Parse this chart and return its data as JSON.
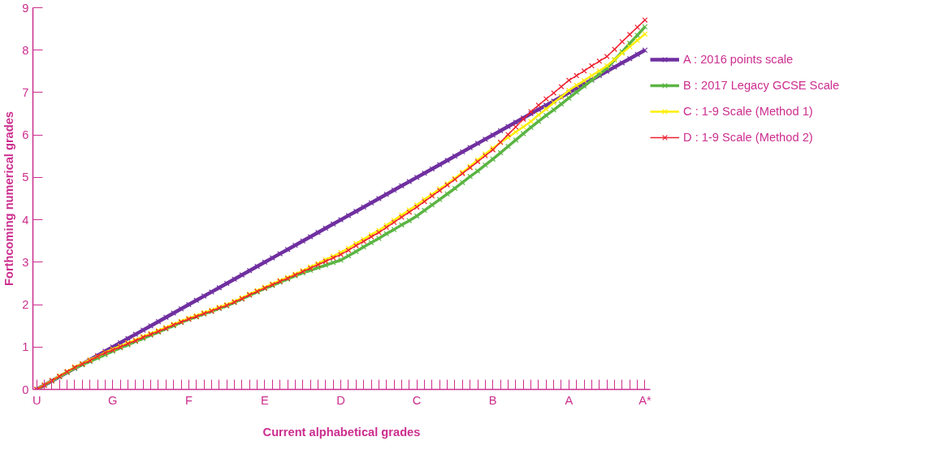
{
  "chart_data": {
    "type": "line",
    "xlabel": "Current alphabetical grades",
    "ylabel": "Forthcoming numerical grades",
    "ylim": [
      0,
      9
    ],
    "yticks": [
      0,
      1,
      2,
      3,
      4,
      5,
      6,
      7,
      8,
      9
    ],
    "categories": [
      "U",
      null,
      null,
      null,
      null,
      null,
      null,
      null,
      null,
      null,
      "G",
      null,
      null,
      null,
      null,
      null,
      null,
      null,
      null,
      null,
      "F",
      null,
      null,
      null,
      null,
      null,
      null,
      null,
      null,
      null,
      "E",
      null,
      null,
      null,
      null,
      null,
      null,
      null,
      null,
      null,
      "D",
      null,
      null,
      null,
      null,
      null,
      null,
      null,
      null,
      null,
      "C",
      null,
      null,
      null,
      null,
      null,
      null,
      null,
      null,
      null,
      "B",
      null,
      null,
      null,
      null,
      null,
      null,
      null,
      null,
      null,
      "A",
      null,
      null,
      null,
      null,
      null,
      null,
      null,
      null,
      null,
      "A*"
    ],
    "series": [
      {
        "name": "A : 2016 points scale",
        "color": "#7030a0",
        "values": [
          0,
          0.1,
          0.2,
          0.3,
          0.4,
          0.5,
          0.6,
          0.7,
          0.8,
          0.9,
          1,
          1.1,
          1.2,
          1.3,
          1.4,
          1.5,
          1.6,
          1.7,
          1.8,
          1.9,
          2,
          2.1,
          2.2,
          2.3,
          2.4,
          2.5,
          2.6,
          2.7,
          2.8,
          2.9,
          3,
          3.1,
          3.2,
          3.3,
          3.4,
          3.5,
          3.6,
          3.7,
          3.8,
          3.9,
          4,
          4.1,
          4.2,
          4.3,
          4.4,
          4.5,
          4.6,
          4.7,
          4.8,
          4.9,
          5,
          5.1,
          5.2,
          5.3,
          5.4,
          5.5,
          5.6,
          5.7,
          5.8,
          5.9,
          6,
          6.1,
          6.2,
          6.3,
          6.4,
          6.5,
          6.6,
          6.7,
          6.8,
          6.9,
          7,
          7.1,
          7.2,
          7.3,
          7.4,
          7.5,
          7.6,
          7.7,
          7.8,
          7.9,
          8
        ]
      },
      {
        "name": "B : 2017 Legacy GCSE Scale",
        "color": "#5bb543",
        "values": [
          0,
          0.1,
          0.2,
          0.3,
          0.4,
          0.5,
          0.58,
          0.66,
          0.74,
          0.82,
          0.9,
          0.98,
          1.05,
          1.13,
          1.2,
          1.28,
          1.35,
          1.43,
          1.5,
          1.58,
          1.65,
          1.71,
          1.78,
          1.84,
          1.91,
          1.97,
          2.05,
          2.13,
          2.22,
          2.3,
          2.38,
          2.45,
          2.53,
          2.6,
          2.68,
          2.75,
          2.81,
          2.87,
          2.93,
          2.99,
          3.05,
          3.15,
          3.25,
          3.36,
          3.46,
          3.56,
          3.67,
          3.77,
          3.88,
          3.98,
          4.09,
          4.22,
          4.35,
          4.48,
          4.61,
          4.74,
          4.88,
          5.02,
          5.15,
          5.29,
          5.43,
          5.58,
          5.73,
          5.88,
          6.03,
          6.18,
          6.32,
          6.46,
          6.59,
          6.73,
          6.87,
          7.01,
          7.15,
          7.29,
          7.43,
          7.57,
          7.77,
          7.96,
          8.16,
          8.35,
          8.55
        ]
      },
      {
        "name": "C : 1-9 Scale (Method 1)",
        "color": "#ffee00",
        "values": [
          0,
          0.11,
          0.21,
          0.32,
          0.42,
          0.53,
          0.61,
          0.7,
          0.78,
          0.87,
          0.95,
          1.02,
          1.1,
          1.17,
          1.25,
          1.32,
          1.39,
          1.46,
          1.54,
          1.61,
          1.68,
          1.74,
          1.81,
          1.87,
          1.94,
          2.0,
          2.08,
          2.16,
          2.25,
          2.33,
          2.41,
          2.49,
          2.57,
          2.64,
          2.72,
          2.8,
          2.89,
          2.97,
          3.06,
          3.14,
          3.23,
          3.33,
          3.44,
          3.54,
          3.65,
          3.75,
          3.87,
          3.99,
          4.11,
          4.23,
          4.35,
          4.48,
          4.6,
          4.73,
          4.85,
          4.98,
          5.12,
          5.26,
          5.41,
          5.55,
          5.69,
          5.82,
          5.94,
          6.07,
          6.19,
          6.32,
          6.47,
          6.61,
          6.76,
          6.9,
          7.05,
          7.17,
          7.28,
          7.4,
          7.51,
          7.63,
          7.78,
          7.93,
          8.08,
          8.23,
          8.38
        ]
      },
      {
        "name": "D : 1-9 Scale (Method 2)",
        "color": "#ee2030",
        "values": [
          0,
          0.1,
          0.21,
          0.31,
          0.42,
          0.52,
          0.6,
          0.68,
          0.78,
          0.86,
          0.93,
          1.0,
          1.08,
          1.15,
          1.23,
          1.3,
          1.37,
          1.44,
          1.52,
          1.59,
          1.66,
          1.72,
          1.79,
          1.85,
          1.92,
          1.98,
          2.06,
          2.14,
          2.23,
          2.31,
          2.39,
          2.47,
          2.55,
          2.62,
          2.7,
          2.78,
          2.86,
          2.94,
          3.02,
          3.1,
          3.18,
          3.28,
          3.39,
          3.49,
          3.6,
          3.7,
          3.82,
          3.94,
          4.06,
          4.18,
          4.3,
          4.43,
          4.56,
          4.69,
          4.82,
          4.95,
          5.09,
          5.23,
          5.37,
          5.51,
          5.65,
          5.83,
          6.01,
          6.19,
          6.37,
          6.55,
          6.7,
          6.85,
          6.99,
          7.14,
          7.29,
          7.4,
          7.51,
          7.63,
          7.74,
          7.85,
          8.02,
          8.2,
          8.37,
          8.54,
          8.71
        ]
      }
    ],
    "marker": "cross",
    "line_style": "solid",
    "grid": false,
    "legend": "right"
  }
}
